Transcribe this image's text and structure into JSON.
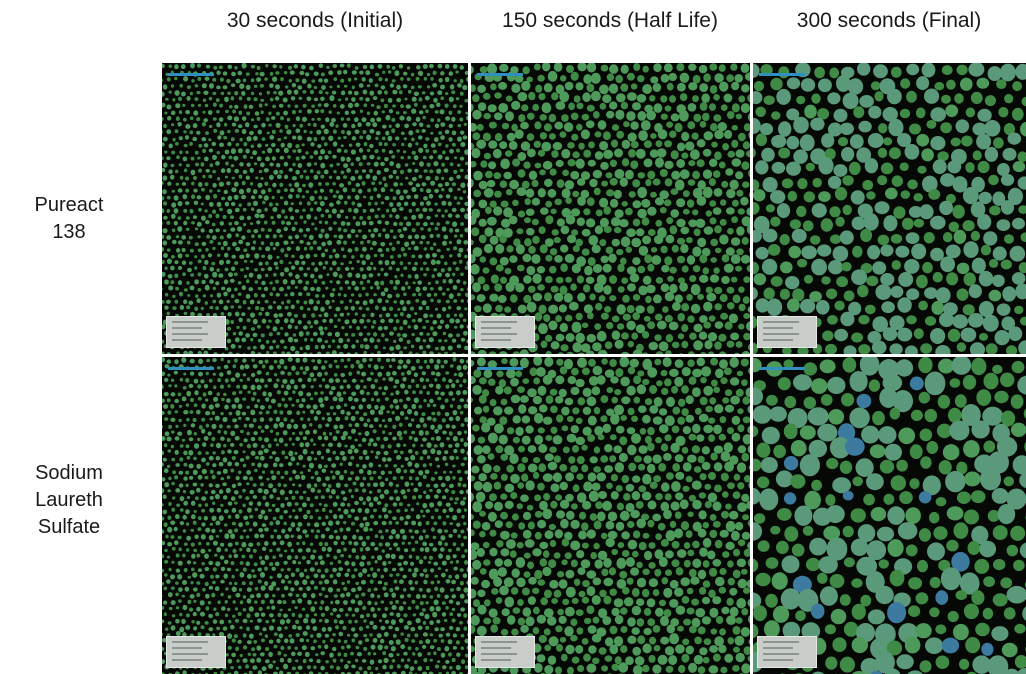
{
  "columns": [
    {
      "label": "30 seconds (Initial)"
    },
    {
      "label": "150 seconds (Half Life)"
    },
    {
      "label": "300 seconds (Final)"
    }
  ],
  "rows": [
    {
      "lines": [
        "Pureact",
        "138"
      ]
    },
    {
      "lines": [
        "Sodium",
        "Laureth",
        "Sulfate"
      ]
    }
  ],
  "colors": {
    "background": "#050805",
    "bubble_small": "#3f8a45",
    "bubble_mid": "#4d9a5a",
    "bubble_large": "#5a9a7a",
    "bubble_blue": "#3d7aa0",
    "scale_bar": "#2f8fbf"
  },
  "panels": [
    {
      "row": 0,
      "col": 0,
      "stage": "initial"
    },
    {
      "row": 0,
      "col": 1,
      "stage": "half-life"
    },
    {
      "row": 0,
      "col": 2,
      "stage": "final"
    },
    {
      "row": 1,
      "col": 0,
      "stage": "initial"
    },
    {
      "row": 1,
      "col": 1,
      "stage": "half-life"
    },
    {
      "row": 1,
      "col": 2,
      "stage": "final-coarse"
    }
  ]
}
